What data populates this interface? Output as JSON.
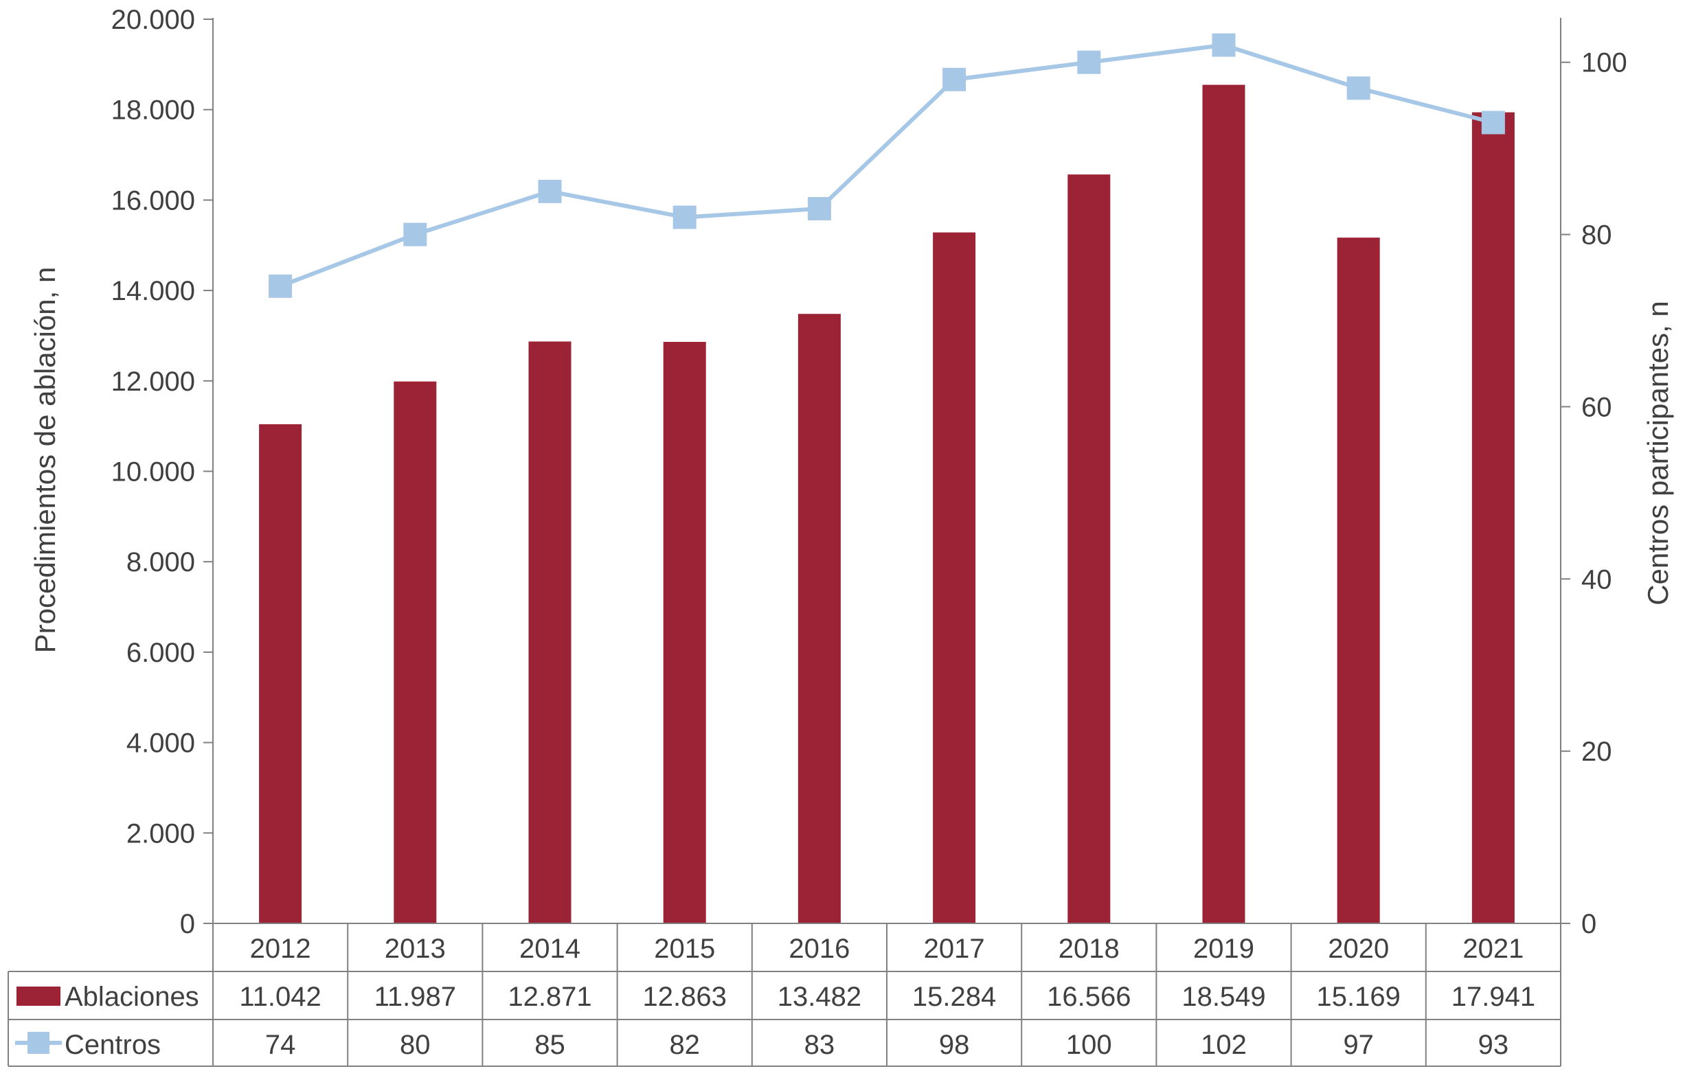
{
  "chart_data": {
    "type": "bar",
    "categories": [
      "2012",
      "2013",
      "2014",
      "2015",
      "2016",
      "2017",
      "2018",
      "2019",
      "2020",
      "2021"
    ],
    "series": [
      {
        "name": "Ablaciones",
        "type": "bar",
        "axis": "left",
        "color": "#9B2335",
        "values": [
          11042,
          11987,
          12871,
          12863,
          13482,
          15284,
          16566,
          18549,
          15169,
          17941
        ],
        "labels": [
          "11.042",
          "11.987",
          "12.871",
          "12.863",
          "13.482",
          "15.284",
          "16.566",
          "18.549",
          "15.169",
          "17.941"
        ]
      },
      {
        "name": "Centros",
        "type": "line",
        "axis": "right",
        "color": "#A7C7E7",
        "marker": "square",
        "values": [
          74,
          80,
          85,
          82,
          83,
          98,
          100,
          102,
          97,
          93
        ],
        "labels": [
          "74",
          "80",
          "85",
          "82",
          "83",
          "98",
          "100",
          "102",
          "97",
          "93"
        ]
      }
    ],
    "ylabel": "Procedimientos de ablación, n",
    "y2label": "Centros participantes, n",
    "ylim": [
      0,
      20000
    ],
    "y2lim": [
      0,
      105
    ],
    "yticks": [
      0,
      2000,
      4000,
      6000,
      8000,
      10000,
      12000,
      14000,
      16000,
      18000,
      20000
    ],
    "ytick_labels": [
      "0",
      "2.000",
      "4.000",
      "6.000",
      "8.000",
      "10.000",
      "12.000",
      "14.000",
      "16.000",
      "18.000",
      "20.000"
    ],
    "y2ticks": [
      0,
      20,
      40,
      60,
      80,
      100
    ],
    "y2tick_labels": [
      "0",
      "20",
      "40",
      "60",
      "80",
      "100"
    ],
    "grid": false,
    "legend": "data-table"
  }
}
